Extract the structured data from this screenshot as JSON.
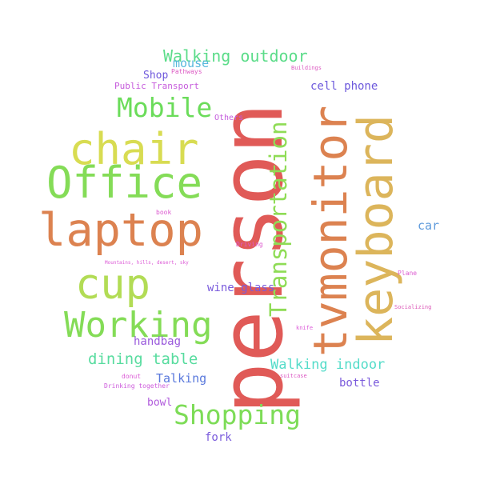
{
  "words": {
    "person": {
      "text": "person",
      "color": "#e05a57"
    },
    "tvmonitor": {
      "text": "tvmonitor",
      "color": "#dc8250"
    },
    "keyboard": {
      "text": "keyboard",
      "color": "#dcb55b"
    },
    "transportation": {
      "text": "Transportation",
      "color": "#8fdc56"
    },
    "laptop": {
      "text": "laptop",
      "color": "#dc8250"
    },
    "office": {
      "text": "Office",
      "color": "#84dc57"
    },
    "chair": {
      "text": "chair",
      "color": "#d8dc52"
    },
    "cup": {
      "text": "cup",
      "color": "#b2dc55"
    },
    "working": {
      "text": "Working",
      "color": "#84dc57"
    },
    "mobile": {
      "text": "Mobile",
      "color": "#6bdc5a"
    },
    "shopping": {
      "text": "Shopping",
      "color": "#7ddc57"
    },
    "walking_outdoor": {
      "text": "Walking outdoor",
      "color": "#5bdc89"
    },
    "dining_table": {
      "text": "dining table",
      "color": "#58dc9f"
    },
    "walking_indoor": {
      "text": "Walking indoor",
      "color": "#54dcc9"
    },
    "mouse": {
      "text": "mouse",
      "color": "#57b8dc"
    },
    "shop": {
      "text": "Shop",
      "color": "#6e58dc"
    },
    "public_transport": {
      "text": "Public Transport",
      "color": "#c65bdc"
    },
    "pathways": {
      "text": "Pathways",
      "color": "#dc58c3"
    },
    "buildings": {
      "text": "Buildings",
      "color": "#dc5ac1"
    },
    "cell_phone": {
      "text": "cell phone",
      "color": "#6d59dc"
    },
    "others": {
      "text": "Others",
      "color": "#c45cdc"
    },
    "car": {
      "text": "car",
      "color": "#5f9bdc"
    },
    "book": {
      "text": "book",
      "color": "#dc5ad0"
    },
    "driving": {
      "text": "Driving",
      "color": "#dc58cc"
    },
    "mountains": {
      "text": "Mountains, hills, desert, sky",
      "color": "#dc5ad6"
    },
    "plane": {
      "text": "Plane",
      "color": "#dc5ad0"
    },
    "wine_glass": {
      "text": "wine glass",
      "color": "#7a5bdc"
    },
    "socializing": {
      "text": "Socializing",
      "color": "#dc5ab8"
    },
    "knife": {
      "text": "knife",
      "color": "#dc5ad8"
    },
    "handbag": {
      "text": "handbag",
      "color": "#9a5adc"
    },
    "talking": {
      "text": "Talking",
      "color": "#5a79dc"
    },
    "donut": {
      "text": "donut",
      "color": "#dc5ad6"
    },
    "suitcase": {
      "text": "suitcase",
      "color": "#dc5ac4"
    },
    "bottle": {
      "text": "bottle",
      "color": "#7a5adc"
    },
    "drinking_together": {
      "text": "Drinking together",
      "color": "#cd5adc"
    },
    "bowl": {
      "text": "bowl",
      "color": "#b05adc"
    },
    "fork": {
      "text": "fork",
      "color": "#7a5bdc"
    }
  }
}
